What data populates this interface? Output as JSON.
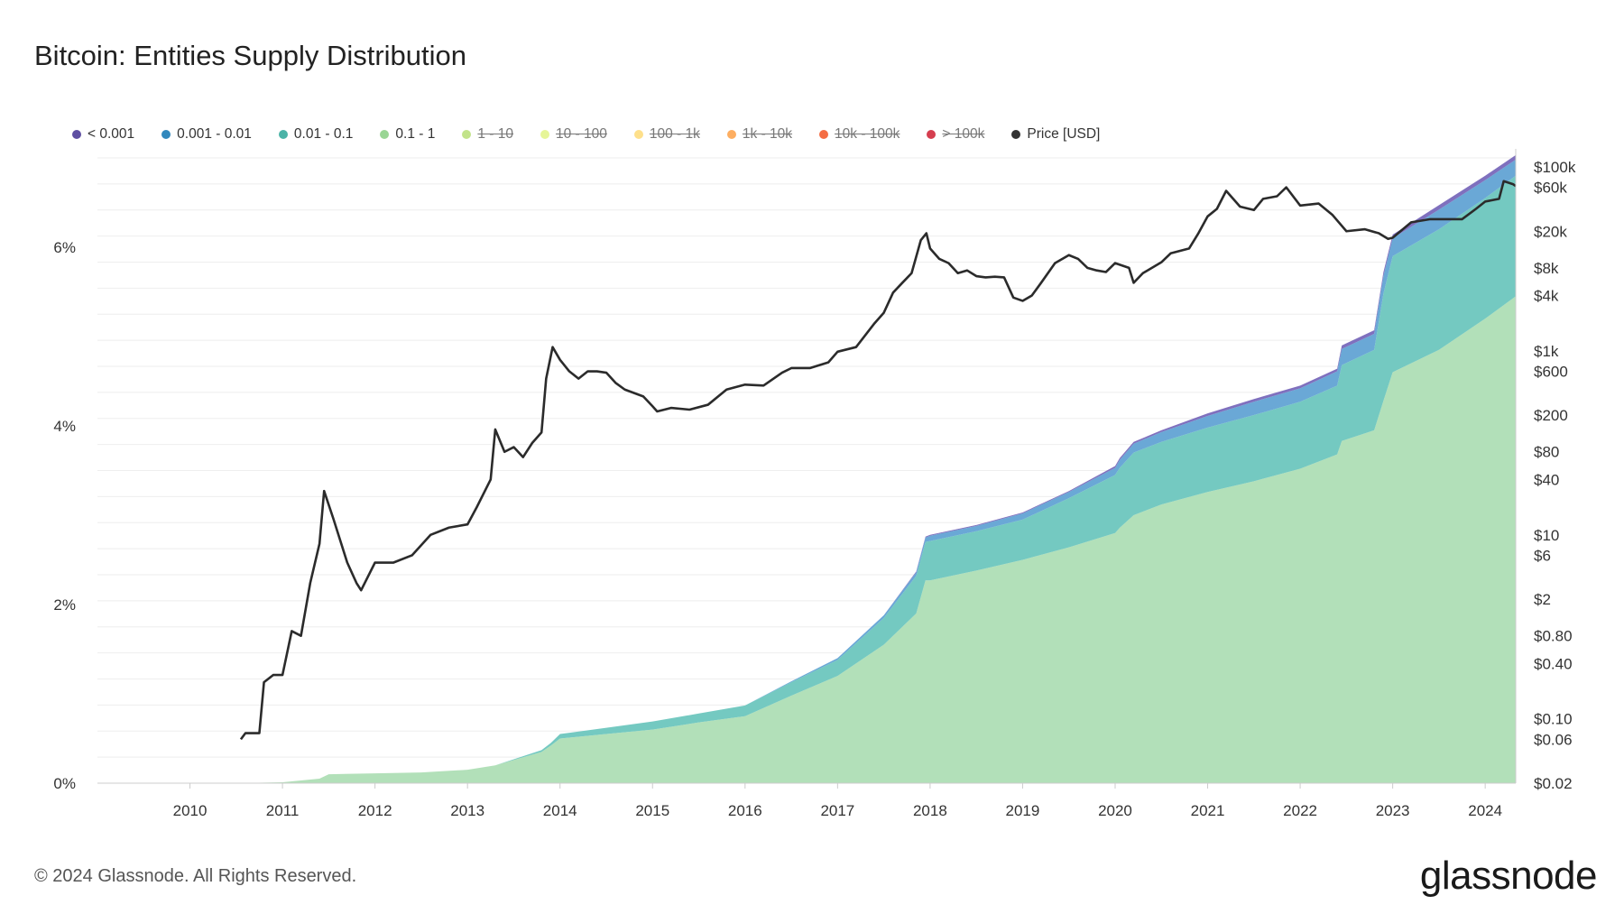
{
  "title": "Bitcoin: Entities Supply Distribution",
  "footer": "© 2024 Glassnode. All Rights Reserved.",
  "brand": "glassnode",
  "legend": [
    {
      "label": "< 0.001",
      "color": "#5e4fa2",
      "active": true
    },
    {
      "label": "0.001 - 0.01",
      "color": "#3288bd",
      "active": true
    },
    {
      "label": "0.01 - 0.1",
      "color": "#4bb3a7",
      "active": true
    },
    {
      "label": "0.1 - 1",
      "color": "#99d594",
      "active": true
    },
    {
      "label": "1 - 10",
      "color": "#c2e38a",
      "active": false
    },
    {
      "label": "10 - 100",
      "color": "#e6f598",
      "active": false
    },
    {
      "label": "100 - 1k",
      "color": "#fee08b",
      "active": false
    },
    {
      "label": "1k - 10k",
      "color": "#fdae61",
      "active": false
    },
    {
      "label": "10k - 100k",
      "color": "#f46d43",
      "active": false
    },
    {
      "label": "> 100k",
      "color": "#d53e4f",
      "active": false
    },
    {
      "label": "Price [USD]",
      "color": "#333333",
      "active": true
    }
  ],
  "chart_data": {
    "type": "area",
    "x_unit": "year",
    "xlim": [
      2009.0,
      2024.33
    ],
    "x_ticks": [
      "2010",
      "2011",
      "2012",
      "2013",
      "2014",
      "2015",
      "2016",
      "2017",
      "2018",
      "2019",
      "2020",
      "2021",
      "2022",
      "2023",
      "2024"
    ],
    "y_left": {
      "unit": "%",
      "ylim": [
        0,
        7.1
      ],
      "ticks": [
        "0%",
        "2%",
        "4%",
        "6%"
      ],
      "tick_values": [
        0,
        2,
        4,
        6
      ]
    },
    "y_right": {
      "scale": "log",
      "unit": "USD",
      "ticks": [
        "$100k",
        "$60k",
        "$20k",
        "$8k",
        "$4k",
        "$1k",
        "$600",
        "$200",
        "$80",
        "$40",
        "$10",
        "$6",
        "$2",
        "$0.80",
        "$0.40",
        "$0.10",
        "$0.06",
        "$0.02"
      ],
      "tick_values": [
        100000,
        60000,
        20000,
        8000,
        4000,
        1000,
        600,
        200,
        80,
        40,
        10,
        6,
        2,
        0.8,
        0.4,
        0.1,
        0.06,
        0.02
      ]
    },
    "grid": true,
    "legend_position": "top",
    "x": [
      2009.0,
      2010.5,
      2011.0,
      2011.4,
      2011.5,
      2012.0,
      2012.5,
      2013.0,
      2013.3,
      2013.8,
      2013.9,
      2014.0,
      2014.5,
      2015.0,
      2015.5,
      2016.0,
      2016.5,
      2017.0,
      2017.5,
      2017.85,
      2017.95,
      2018.0,
      2018.5,
      2019.0,
      2019.5,
      2020.0,
      2020.05,
      2020.2,
      2020.5,
      2021.0,
      2021.5,
      2022.0,
      2022.4,
      2022.45,
      2022.8,
      2022.9,
      2023.0,
      2023.5,
      2024.0,
      2024.33
    ],
    "series": [
      {
        "name": "0.1 - 1",
        "color": "#b2e0b9",
        "values": [
          0,
          0,
          0.01,
          0.05,
          0.1,
          0.11,
          0.12,
          0.15,
          0.2,
          0.35,
          0.42,
          0.5,
          0.55,
          0.6,
          0.68,
          0.75,
          0.98,
          1.2,
          1.55,
          1.9,
          2.27,
          2.27,
          2.38,
          2.5,
          2.64,
          2.8,
          2.86,
          3.0,
          3.12,
          3.26,
          3.38,
          3.52,
          3.68,
          3.83,
          3.95,
          4.28,
          4.6,
          4.85,
          5.2,
          5.45
        ]
      },
      {
        "name": "0.01 - 0.1",
        "color": "#74c9c1",
        "values": [
          0,
          0,
          0,
          0,
          0,
          0,
          0,
          0,
          0,
          0.02,
          0.03,
          0.05,
          0.07,
          0.09,
          0.1,
          0.12,
          0.15,
          0.18,
          0.3,
          0.42,
          0.43,
          0.44,
          0.44,
          0.45,
          0.55,
          0.65,
          0.67,
          0.7,
          0.7,
          0.72,
          0.74,
          0.75,
          0.77,
          0.85,
          0.9,
          1.2,
          1.3,
          1.35,
          1.35,
          1.35
        ]
      },
      {
        "name": "0.001 - 0.01",
        "color": "#6aa8d6",
        "values": [
          0,
          0,
          0,
          0,
          0,
          0,
          0,
          0,
          0,
          0,
          0,
          0,
          0,
          0,
          0,
          0,
          0.01,
          0.02,
          0.03,
          0.04,
          0.05,
          0.06,
          0.06,
          0.07,
          0.07,
          0.08,
          0.09,
          0.1,
          0.11,
          0.13,
          0.15,
          0.15,
          0.16,
          0.18,
          0.18,
          0.2,
          0.2,
          0.22,
          0.2,
          0.18
        ]
      },
      {
        "name": "< 0.001",
        "color": "#7f70be",
        "values": [
          0,
          0,
          0,
          0,
          0,
          0,
          0,
          0,
          0,
          0,
          0,
          0,
          0,
          0,
          0,
          0,
          0,
          0,
          0,
          0.01,
          0.01,
          0.01,
          0.01,
          0.01,
          0.01,
          0.02,
          0.02,
          0.02,
          0.02,
          0.03,
          0.03,
          0.03,
          0.03,
          0.04,
          0.04,
          0.04,
          0.04,
          0.05,
          0.05,
          0.05
        ]
      },
      {
        "name": "Price [USD]",
        "color": "#2b2b2b",
        "axis": "right",
        "x": [
          2010.55,
          2010.6,
          2010.75,
          2010.8,
          2010.9,
          2011.0,
          2011.1,
          2011.2,
          2011.3,
          2011.4,
          2011.45,
          2011.55,
          2011.7,
          2011.8,
          2011.85,
          2012.0,
          2012.2,
          2012.4,
          2012.6,
          2012.8,
          2013.0,
          2013.1,
          2013.25,
          2013.3,
          2013.4,
          2013.5,
          2013.6,
          2013.7,
          2013.8,
          2013.85,
          2013.92,
          2014.0,
          2014.1,
          2014.2,
          2014.3,
          2014.4,
          2014.5,
          2014.6,
          2014.7,
          2014.9,
          2015.0,
          2015.05,
          2015.2,
          2015.4,
          2015.6,
          2015.8,
          2016.0,
          2016.2,
          2016.4,
          2016.5,
          2016.7,
          2016.9,
          2017.0,
          2017.2,
          2017.4,
          2017.5,
          2017.6,
          2017.7,
          2017.8,
          2017.9,
          2017.96,
          2018.0,
          2018.1,
          2018.2,
          2018.3,
          2018.4,
          2018.5,
          2018.6,
          2018.7,
          2018.8,
          2018.9,
          2019.0,
          2019.1,
          2019.2,
          2019.35,
          2019.5,
          2019.6,
          2019.7,
          2019.8,
          2019.9,
          2020.0,
          2020.15,
          2020.2,
          2020.3,
          2020.5,
          2020.6,
          2020.8,
          2020.9,
          2021.0,
          2021.1,
          2021.2,
          2021.35,
          2021.5,
          2021.6,
          2021.75,
          2021.85,
          2022.0,
          2022.2,
          2022.35,
          2022.5,
          2022.7,
          2022.85,
          2022.95,
          2023.0,
          2023.2,
          2023.4,
          2023.6,
          2023.75,
          2023.9,
          2024.0,
          2024.15,
          2024.2,
          2024.3,
          2024.33
        ],
        "values": [
          0.06,
          0.07,
          0.07,
          0.25,
          0.3,
          0.3,
          0.9,
          0.8,
          3,
          8,
          30,
          15,
          5,
          3,
          2.5,
          5,
          5,
          6,
          10,
          12,
          13,
          20,
          40,
          140,
          80,
          90,
          70,
          100,
          130,
          500,
          1100,
          800,
          600,
          500,
          600,
          600,
          580,
          450,
          380,
          320,
          250,
          220,
          240,
          230,
          260,
          380,
          430,
          420,
          580,
          650,
          650,
          750,
          980,
          1100,
          2000,
          2600,
          4300,
          5500,
          7000,
          16000,
          19000,
          13000,
          10000,
          9000,
          7000,
          7500,
          6500,
          6300,
          6400,
          6300,
          3800,
          3500,
          4000,
          5500,
          9000,
          11000,
          10000,
          8000,
          7500,
          7200,
          9000,
          8000,
          5500,
          7000,
          9200,
          11500,
          13000,
          19000,
          29000,
          35000,
          55000,
          37000,
          34000,
          45000,
          48000,
          60000,
          38000,
          40000,
          30000,
          20000,
          21000,
          19000,
          16500,
          17000,
          25000,
          27000,
          27000,
          27000,
          35000,
          42000,
          45000,
          70000,
          65000,
          62000
        ]
      }
    ]
  }
}
